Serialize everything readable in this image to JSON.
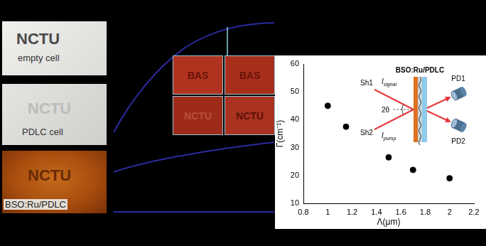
{
  "chart_data": {
    "type": "scatter",
    "x": [
      1,
      1.15,
      1.5,
      1.7,
      2
    ],
    "values": [
      45,
      37.5,
      26.5,
      22,
      19
    ],
    "x_label": "Λ(μm)",
    "y_label": "Γ(cm⁻¹)",
    "xlim": [
      0.8,
      2.2
    ],
    "xticks": [
      0.8,
      1,
      1.2,
      1.4,
      1.6,
      1.8,
      2,
      2.2
    ],
    "ylim": [
      10,
      60
    ],
    "yticks": [
      10,
      20,
      30,
      40,
      50,
      60
    ],
    "color": "#000000",
    "marker": "circle",
    "grid": false
  },
  "inset_diagram": {
    "sample": "BSO:Ru/PDLC",
    "shutters": [
      "Sh1",
      "Sh2"
    ],
    "beams": [
      {
        "symbol": "I",
        "subscript": "signal"
      },
      {
        "symbol": "I",
        "subscript": "pump"
      }
    ],
    "angle": "2θ",
    "detectors": [
      "PD1",
      "PD2"
    ]
  },
  "cell_photos": [
    {
      "text": "NCTU",
      "caption": "empty cell"
    },
    {
      "text": "NCTU",
      "caption": "PDLC cell"
    },
    {
      "text": "NCTU",
      "caption": "BSO:Ru/PDLC"
    }
  ],
  "photo_grid": [
    [
      "BAS",
      "BAS"
    ],
    [
      "NCTU",
      "NCTU"
    ]
  ]
}
